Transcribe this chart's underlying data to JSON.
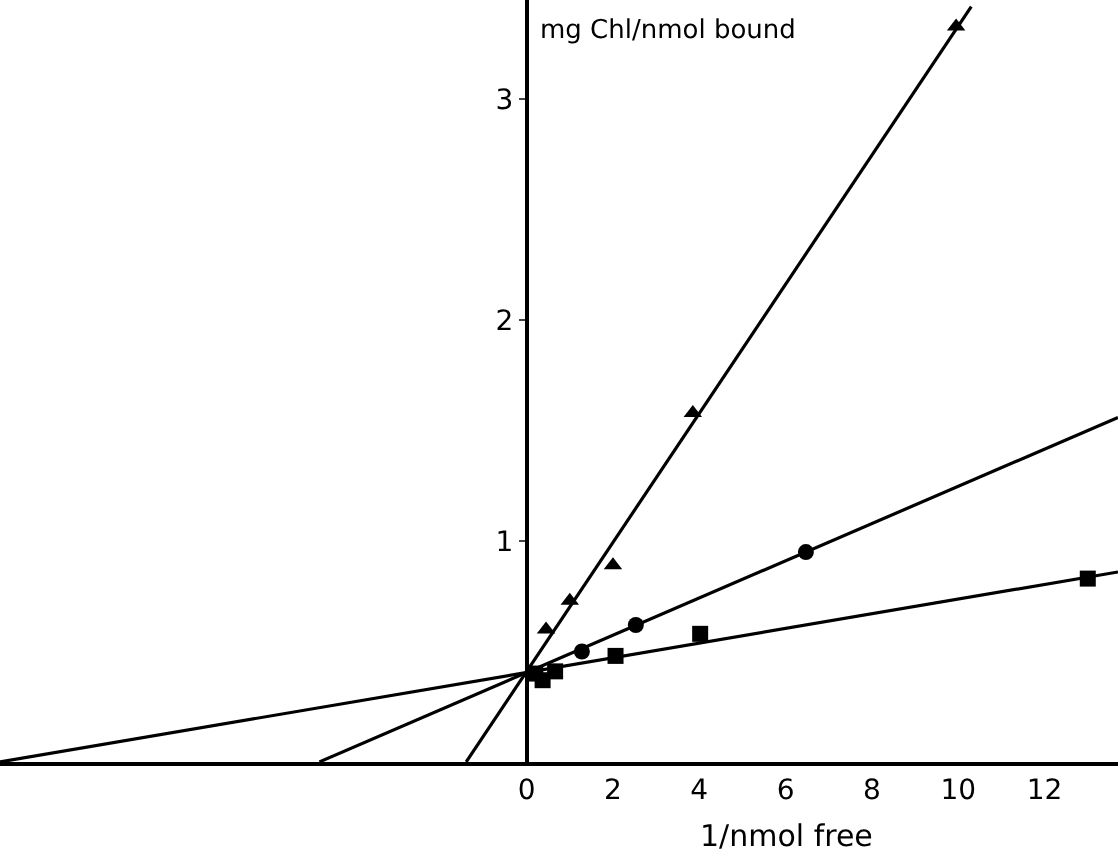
{
  "chart_data": {
    "type": "scatter",
    "xlabel": "1/nmol free",
    "ylabel": "mg Chl/nmol bound",
    "xlim": [
      -12.2,
      13.7
    ],
    "ylim": [
      0,
      3.45
    ],
    "xticks": [
      0,
      2,
      4,
      6,
      8,
      10,
      12
    ],
    "yticks": [
      1,
      2,
      3
    ],
    "legend": false,
    "series": [
      {
        "marker": "triangle",
        "color": "#000000",
        "x": [
          0.45,
          1.0,
          2.0,
          3.85,
          9.95
        ],
        "values": [
          0.6,
          0.73,
          0.89,
          1.58,
          3.33
        ]
      },
      {
        "marker": "circle",
        "color": "#000000",
        "x": [
          1.28,
          2.53,
          6.47
        ],
        "values": [
          0.5,
          0.62,
          0.95
        ]
      },
      {
        "marker": "square",
        "color": "#000000",
        "x": [
          0.2,
          0.37,
          0.66,
          2.06,
          4.02,
          13.0
        ],
        "values": [
          0.4,
          0.37,
          0.41,
          0.48,
          0.58,
          0.83
        ]
      },
      {
        "type": "line",
        "marker": "none",
        "color": "#000000",
        "x": [
          -1.4,
          10.3
        ],
        "values": [
          0,
          3.42
        ]
      },
      {
        "type": "line",
        "marker": "none",
        "color": "#000000",
        "x": [
          -4.8,
          13.7
        ],
        "values": [
          0,
          1.56
        ]
      },
      {
        "type": "line",
        "marker": "none",
        "color": "#000000",
        "x": [
          -12.2,
          13.7
        ],
        "values": [
          0,
          0.86
        ]
      }
    ]
  }
}
